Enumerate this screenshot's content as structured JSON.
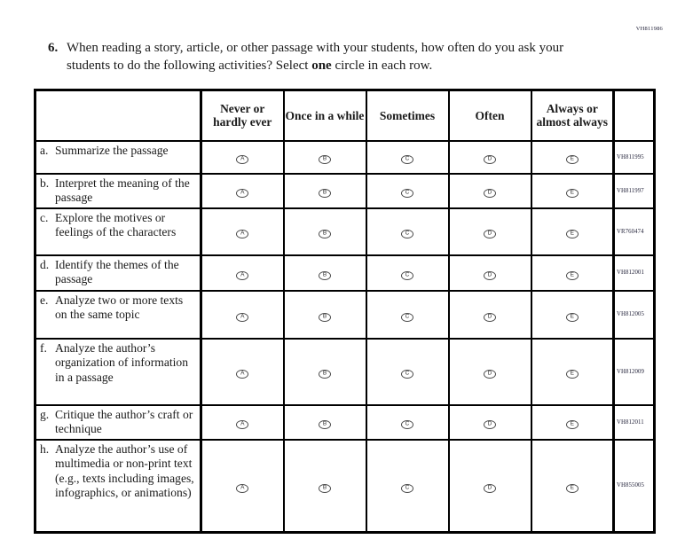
{
  "page": {
    "admin_code": "VH811986"
  },
  "question": {
    "number": "6.",
    "text_pre": "When reading a story, article, or other passage with your students, how often do you ask your students to do the following activities? Select ",
    "text_bold": "one",
    "text_post": " circle in each row."
  },
  "table": {
    "columns": [
      "Never or hardly ever",
      "Once in a while",
      "Sometimes",
      "Often",
      "Always or almost always"
    ],
    "options": [
      "A",
      "B",
      "C",
      "D",
      "E"
    ],
    "rows": [
      {
        "letter": "a.",
        "label": "Summarize the passage",
        "code": "VH811995"
      },
      {
        "letter": "b.",
        "label": "Interpret the meaning of the passage",
        "code": "VH811997"
      },
      {
        "letter": "c.",
        "label": "Explore the motives or feelings of the characters",
        "code": "VR760474"
      },
      {
        "letter": "d.",
        "label": "Identify the themes of the passage",
        "code": "VH812001"
      },
      {
        "letter": "e.",
        "label": "Analyze two or more texts on the same topic",
        "code": "VH812005"
      },
      {
        "letter": "f.",
        "label": "Analyze the author’s organization of information in a passage",
        "code": "VH812009"
      },
      {
        "letter": "g.",
        "label": "Critique the author’s craft or technique",
        "code": "VH812011"
      },
      {
        "letter": "h.",
        "label": "Analyze the author’s use of multimedia or non-print text (e.g., texts including images, infographics, or animations)",
        "code": "VH855005"
      }
    ]
  }
}
